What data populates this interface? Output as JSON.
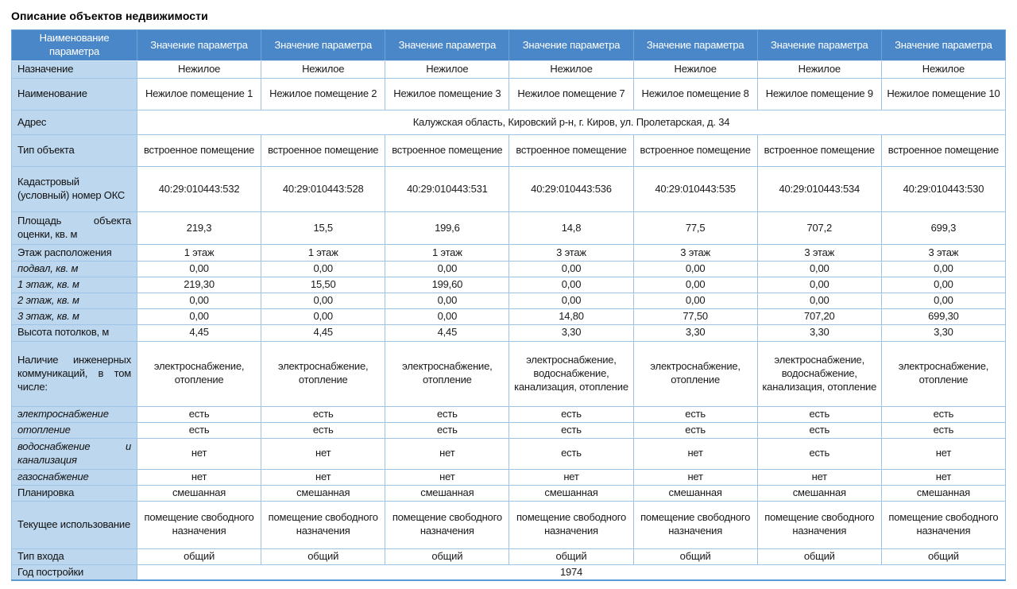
{
  "page_title": "Описание объектов недвижимости",
  "table": {
    "value_column_count": 7,
    "header": {
      "param_name_label": "Наименование параметра",
      "value_label": "Значение параметра"
    },
    "colors": {
      "header_bg": "#4a87c8",
      "header_text": "#ffffff",
      "label_column_bg": "#bdd7ee",
      "grid_border": "#9dc3e6",
      "outer_border": "#5b9bd5"
    },
    "rows": [
      {
        "label": "Назначение",
        "italic": false,
        "values": [
          "Нежилое",
          "Нежилое",
          "Нежилое",
          "Нежилое",
          "Нежилое",
          "Нежилое",
          "Нежилое"
        ]
      },
      {
        "label": "Наименование",
        "italic": false,
        "values": [
          "Нежилое помещение 1",
          "Нежилое помещение 2",
          "Нежилое помещение 3",
          "Нежилое помещение 7",
          "Нежилое помещение 8",
          "Нежилое помещение 9",
          "Нежилое помещение 10"
        ]
      },
      {
        "label": "Адрес",
        "italic": false,
        "merged": true,
        "values": [
          "Калужская область, Кировский р-н, г. Киров, ул. Пролетарская, д. 34"
        ]
      },
      {
        "label": "Тип объекта",
        "italic": false,
        "values": [
          "встроенное помещение",
          "встроенное помещение",
          "встроенное помещение",
          "встроенное помещение",
          "встроенное помещение",
          "встроенное помещение",
          "встроенное помещение"
        ]
      },
      {
        "label": "Кадастровый (условный) номер ОКС",
        "italic": false,
        "values": [
          "40:29:010443:532",
          "40:29:010443:528",
          "40:29:010443:531",
          "40:29:010443:536",
          "40:29:010443:535",
          "40:29:010443:534",
          "40:29:010443:530"
        ]
      },
      {
        "label": "Площадь объекта оценки, кв. м",
        "italic": false,
        "values": [
          "219,3",
          "15,5",
          "199,6",
          "14,8",
          "77,5",
          "707,2",
          "699,3"
        ]
      },
      {
        "label": "Этаж расположения",
        "italic": false,
        "values": [
          "1 этаж",
          "1 этаж",
          "1 этаж",
          "3 этаж",
          "3 этаж",
          "3 этаж",
          "3 этаж"
        ]
      },
      {
        "label": "подвал, кв. м",
        "italic": true,
        "values": [
          "0,00",
          "0,00",
          "0,00",
          "0,00",
          "0,00",
          "0,00",
          "0,00"
        ]
      },
      {
        "label": "1 этаж, кв. м",
        "italic": true,
        "values": [
          "219,30",
          "15,50",
          "199,60",
          "0,00",
          "0,00",
          "0,00",
          "0,00"
        ]
      },
      {
        "label": "2 этаж, кв. м",
        "italic": true,
        "values": [
          "0,00",
          "0,00",
          "0,00",
          "0,00",
          "0,00",
          "0,00",
          "0,00"
        ]
      },
      {
        "label": "3 этаж, кв. м",
        "italic": true,
        "values": [
          "0,00",
          "0,00",
          "0,00",
          "14,80",
          "77,50",
          "707,20",
          "699,30"
        ]
      },
      {
        "label": "Высота потолков, м",
        "italic": false,
        "values": [
          "4,45",
          "4,45",
          "4,45",
          "3,30",
          "3,30",
          "3,30",
          "3,30"
        ]
      },
      {
        "label": "Наличие инженерных коммуникаций, в том числе:",
        "italic": false,
        "values": [
          "электроснабжение, отопление",
          "электроснабжение, отопление",
          "электроснабжение, отопление",
          "электроснабжение, водоснабжение, канализация, отопление",
          "электроснабжение, отопление",
          "электроснабжение, водоснабжение, канализация, отопление",
          "электроснабжение, отопление"
        ]
      },
      {
        "label": "электроснабжение",
        "italic": true,
        "values": [
          "есть",
          "есть",
          "есть",
          "есть",
          "есть",
          "есть",
          "есть"
        ]
      },
      {
        "label": "отопление",
        "italic": true,
        "values": [
          "есть",
          "есть",
          "есть",
          "есть",
          "есть",
          "есть",
          "есть"
        ]
      },
      {
        "label": "водоснабжение и канализация",
        "italic": true,
        "values": [
          "нет",
          "нет",
          "нет",
          "есть",
          "нет",
          "есть",
          "нет"
        ]
      },
      {
        "label": "газоснабжение",
        "italic": true,
        "values": [
          "нет",
          "нет",
          "нет",
          "нет",
          "нет",
          "нет",
          "нет"
        ]
      },
      {
        "label": "Планировка",
        "italic": false,
        "values": [
          "смешанная",
          "смешанная",
          "смешанная",
          "смешанная",
          "смешанная",
          "смешанная",
          "смешанная"
        ]
      },
      {
        "label": "Текущее использование",
        "italic": false,
        "values": [
          "помещение свободного назначения",
          "помещение свободного назначения",
          "помещение свободного назначения",
          "помещение свободного назначения",
          "помещение свободного назначения",
          "помещение свободного назначения",
          "помещение свободного назначения"
        ]
      },
      {
        "label": "Тип входа",
        "italic": false,
        "values": [
          "общий",
          "общий",
          "общий",
          "общий",
          "общий",
          "общий",
          "общий"
        ]
      },
      {
        "label": "Год постройки",
        "italic": false,
        "merged": true,
        "values": [
          "1974"
        ]
      }
    ]
  }
}
